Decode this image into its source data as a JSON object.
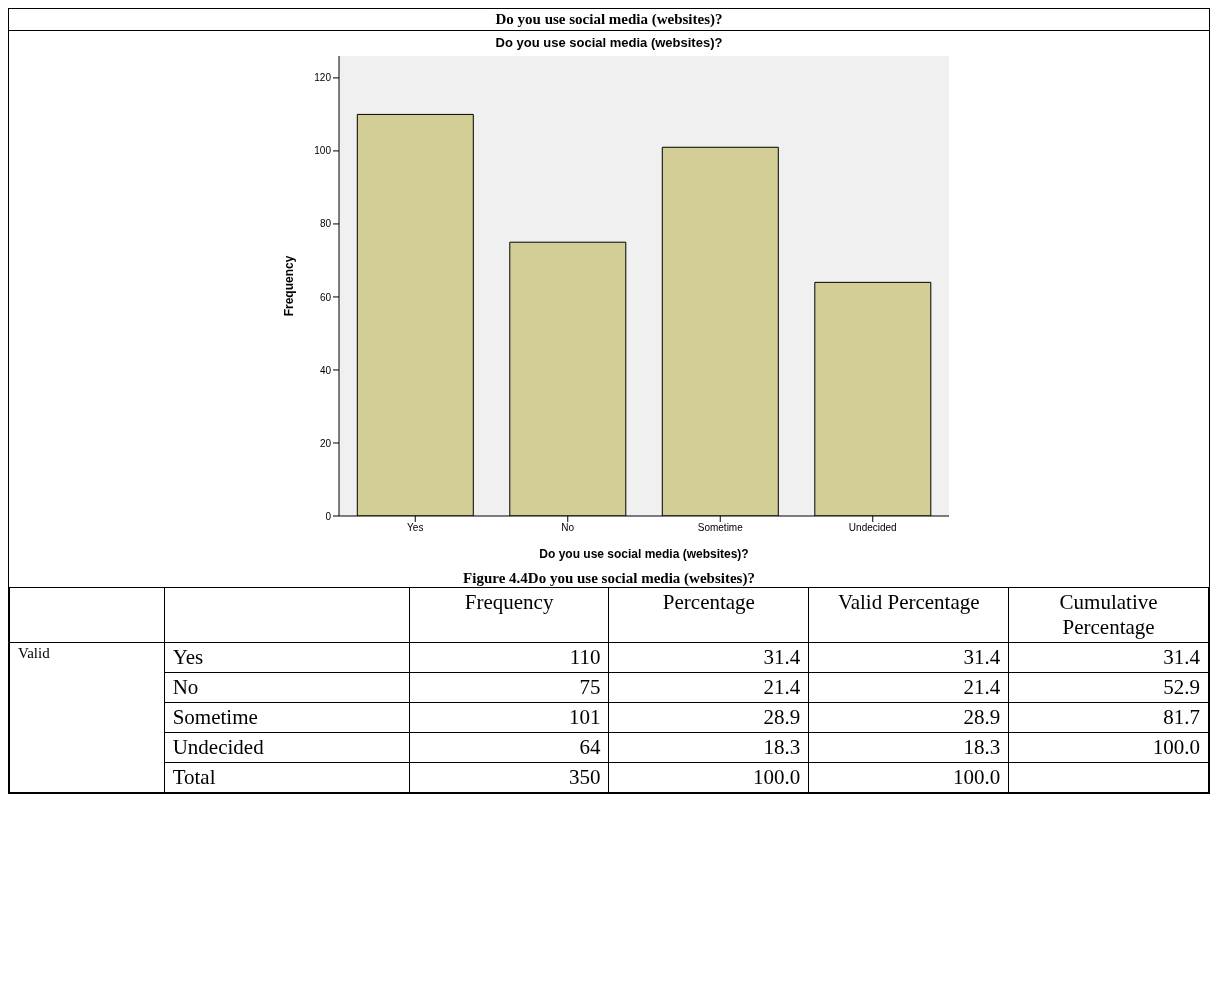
{
  "chart_data": [
    {
      "type": "bar",
      "title": "Do you use social media (websites)?",
      "xlabel": "Do you use social media (websites)?",
      "ylabel": "Frequency",
      "categories": [
        "Yes",
        "No",
        "Sometime",
        "Undecided"
      ],
      "series": [
        {
          "color": "#d3ce96",
          "values": [
            110,
            75,
            101,
            64
          ]
        }
      ],
      "ylim": [
        0,
        126
      ],
      "yticks": [
        0,
        20,
        40,
        60,
        80,
        100,
        120
      ],
      "annotations": [
        "Do you use social media (websites)?",
        "Figure 4.4Do you use social media (websites)?"
      ]
    },
    {
      "type": "other",
      "data_labels": true,
      "categories": [
        "Yes",
        "No",
        "Sometime",
        "Undecided",
        "Total"
      ],
      "annotations": [
        "Valid"
      ],
      "series": [
        {
          "name": "Frequency",
          "values": [
            110,
            75,
            101,
            64,
            350
          ]
        },
        {
          "name": "Percentage",
          "values": [
            31.4,
            21.4,
            28.9,
            18.3,
            100.0
          ],
          "value_labels": [
            "31.4",
            "21.4",
            "28.9",
            "18.3",
            "100.0"
          ]
        },
        {
          "name": "Valid Percentage",
          "values": [
            31.4,
            21.4,
            28.9,
            18.3,
            100.0
          ],
          "value_labels": [
            "31.4",
            "21.4",
            "28.9",
            "18.3",
            "100.0"
          ]
        },
        {
          "name": "Cumulative Percentage",
          "values": [
            31.4,
            52.9,
            81.7,
            100.0,
            null
          ],
          "value_labels": [
            "31.4",
            "52.9",
            "81.7",
            "100.0",
            null
          ]
        }
      ]
    }
  ]
}
